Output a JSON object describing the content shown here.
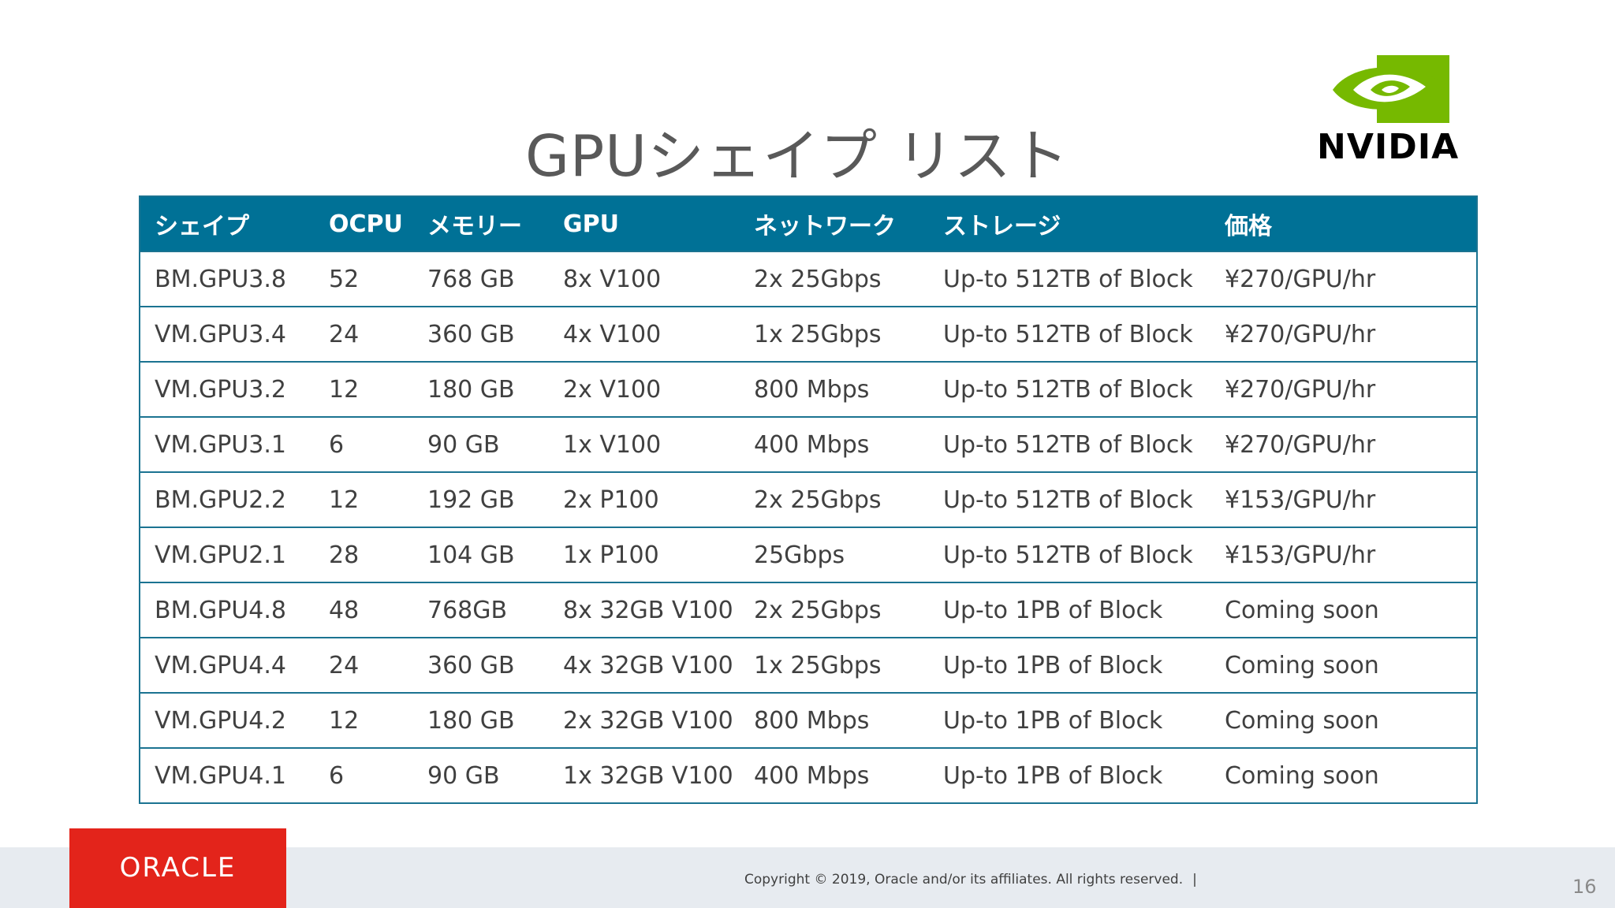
{
  "title": "GPUシェイプ リスト",
  "brand": {
    "nvidia_wordmark": "NVIDIA",
    "nvidia_color": "#76b900",
    "oracle_wordmark": "ORACLE",
    "oracle_color": "#e3241b"
  },
  "table": {
    "header_color": "#007196",
    "border_color": "#1b7391",
    "columns": [
      "シェイプ",
      "OCPU",
      "メモリー",
      "GPU",
      "ネットワーク",
      "ストレージ",
      "価格"
    ],
    "rows": [
      [
        "BM.GPU3.8",
        "52",
        "768 GB",
        "8x V100",
        "2x 25Gbps",
        "Up-to 512TB of Block",
        "¥270/GPU/hr"
      ],
      [
        "VM.GPU3.4",
        "24",
        "360 GB",
        "4x V100",
        "1x 25Gbps",
        "Up-to 512TB of Block",
        "¥270/GPU/hr"
      ],
      [
        "VM.GPU3.2",
        "12",
        "180 GB",
        "2x V100",
        "800 Mbps",
        "Up-to 512TB of Block",
        "¥270/GPU/hr"
      ],
      [
        "VM.GPU3.1",
        "6",
        "90 GB",
        "1x V100",
        "400 Mbps",
        "Up-to 512TB of Block",
        "¥270/GPU/hr"
      ],
      [
        "BM.GPU2.2",
        "12",
        "192 GB",
        "2x P100",
        "2x 25Gbps",
        "Up-to 512TB of Block",
        "¥153/GPU/hr"
      ],
      [
        "VM.GPU2.1",
        "28",
        "104 GB",
        "1x P100",
        "25Gbps",
        "Up-to 512TB of Block",
        "¥153/GPU/hr"
      ],
      [
        "BM.GPU4.8",
        "48",
        "768GB",
        "8x 32GB V100",
        "2x 25Gbps",
        "Up-to 1PB of Block",
        "Coming soon"
      ],
      [
        "VM.GPU4.4",
        "24",
        "360 GB",
        "4x 32GB V100",
        "1x 25Gbps",
        "Up-to 1PB of Block",
        "Coming soon"
      ],
      [
        "VM.GPU4.2",
        "12",
        "180 GB",
        "2x 32GB V100",
        "800 Mbps",
        "Up-to 1PB of Block",
        "Coming soon"
      ],
      [
        "VM.GPU4.1",
        "6",
        "90 GB",
        "1x 32GB V100",
        "400 Mbps",
        "Up-to 1PB of Block",
        "Coming soon"
      ]
    ]
  },
  "footer": {
    "copyright": "Copyright © 2019, Oracle and/or its affiliates. All rights reserved.",
    "separator": "|",
    "page_number": "16"
  }
}
